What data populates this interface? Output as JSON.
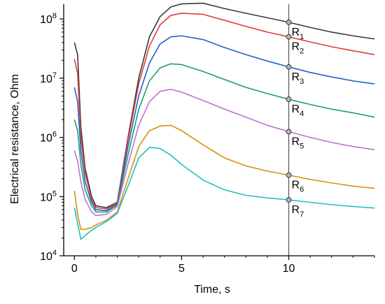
{
  "chart_data": {
    "type": "line",
    "title": "",
    "xlabel": "Time, s",
    "ylabel": "Electrical resistance, Ohm",
    "xlim": [
      -0.5,
      14
    ],
    "ylim_log10": [
      4,
      8.25
    ],
    "y_scale": "log",
    "x_ticks": [
      0,
      5,
      10
    ],
    "x_tick_labels": [
      "0",
      "5",
      "10"
    ],
    "y_ticks_log10": [
      4,
      5,
      6,
      7,
      8
    ],
    "y_tick_labels": [
      {
        "base": "10",
        "exp": "4"
      },
      {
        "base": "10",
        "exp": "5"
      },
      {
        "base": "10",
        "exp": "6"
      },
      {
        "base": "10",
        "exp": "7"
      },
      {
        "base": "10",
        "exp": "8"
      }
    ],
    "grid": false,
    "legend": "none",
    "reference_line_x": 10,
    "series": [
      {
        "label_base": "R",
        "label_sub": "1",
        "color": "#3a3a3a",
        "points": [
          [
            0,
            40000000
          ],
          [
            0.15,
            25000000
          ],
          [
            0.3,
            1500000
          ],
          [
            0.5,
            300000
          ],
          [
            0.8,
            100000
          ],
          [
            1.0,
            70000
          ],
          [
            1.5,
            65000
          ],
          [
            2.0,
            80000
          ],
          [
            2.5,
            1000000
          ],
          [
            3.0,
            10000000
          ],
          [
            3.5,
            50000000
          ],
          [
            4.0,
            110000000
          ],
          [
            4.5,
            160000000
          ],
          [
            5.0,
            180000000
          ],
          [
            6.0,
            185000000
          ],
          [
            7.0,
            150000000
          ],
          [
            8.0,
            125000000
          ],
          [
            9.0,
            105000000
          ],
          [
            10.0,
            88000000
          ],
          [
            11.0,
            72000000
          ],
          [
            12.0,
            60000000
          ],
          [
            13.0,
            52000000
          ],
          [
            14.0,
            46000000
          ]
        ]
      },
      {
        "label_base": "R",
        "label_sub": "2",
        "color": "#e03c3c",
        "points": [
          [
            0,
            21000000
          ],
          [
            0.15,
            12000000
          ],
          [
            0.3,
            1000000
          ],
          [
            0.5,
            250000
          ],
          [
            0.8,
            90000
          ],
          [
            1.0,
            65000
          ],
          [
            1.5,
            62000
          ],
          [
            2.0,
            78000
          ],
          [
            2.5,
            900000
          ],
          [
            3.0,
            8000000
          ],
          [
            3.5,
            35000000
          ],
          [
            4.0,
            80000000
          ],
          [
            4.5,
            115000000
          ],
          [
            5.0,
            125000000
          ],
          [
            6.0,
            120000000
          ],
          [
            7.0,
            95000000
          ],
          [
            8.0,
            75000000
          ],
          [
            9.0,
            60000000
          ],
          [
            10.0,
            50000000
          ],
          [
            11.0,
            41000000
          ],
          [
            12.0,
            34000000
          ],
          [
            13.0,
            29000000
          ],
          [
            14.0,
            25000000
          ]
        ]
      },
      {
        "label_base": "R",
        "label_sub": "3",
        "color": "#1f64c8",
        "points": [
          [
            0,
            7000000
          ],
          [
            0.15,
            4000000
          ],
          [
            0.3,
            600000
          ],
          [
            0.5,
            180000
          ],
          [
            0.8,
            80000
          ],
          [
            1.0,
            60000
          ],
          [
            1.5,
            58000
          ],
          [
            2.0,
            75000
          ],
          [
            2.5,
            700000
          ],
          [
            3.0,
            5000000
          ],
          [
            3.5,
            18000000
          ],
          [
            4.0,
            38000000
          ],
          [
            4.5,
            50000000
          ],
          [
            5.0,
            52000000
          ],
          [
            6.0,
            45000000
          ],
          [
            7.0,
            33000000
          ],
          [
            8.0,
            25000000
          ],
          [
            9.0,
            19500000
          ],
          [
            10.0,
            15500000
          ],
          [
            11.0,
            12500000
          ],
          [
            12.0,
            10500000
          ],
          [
            13.0,
            9000000
          ],
          [
            14.0,
            8000000
          ]
        ]
      },
      {
        "label_base": "R",
        "label_sub": "4",
        "color": "#1e9e6e",
        "points": [
          [
            0,
            2000000
          ],
          [
            0.15,
            1300000
          ],
          [
            0.3,
            350000
          ],
          [
            0.5,
            130000
          ],
          [
            0.8,
            70000
          ],
          [
            1.0,
            55000
          ],
          [
            1.5,
            55000
          ],
          [
            2.0,
            72000
          ],
          [
            2.5,
            500000
          ],
          [
            3.0,
            3000000
          ],
          [
            3.5,
            9000000
          ],
          [
            4.0,
            15000000
          ],
          [
            4.5,
            17500000
          ],
          [
            5.0,
            17000000
          ],
          [
            6.0,
            13000000
          ],
          [
            7.0,
            9500000
          ],
          [
            8.0,
            7000000
          ],
          [
            9.0,
            5500000
          ],
          [
            10.0,
            4400000
          ],
          [
            11.0,
            3600000
          ],
          [
            12.0,
            3000000
          ],
          [
            13.0,
            2600000
          ],
          [
            14.0,
            2200000
          ]
        ]
      },
      {
        "label_base": "R",
        "label_sub": "5",
        "color": "#c070d0",
        "points": [
          [
            0,
            600000
          ],
          [
            0.15,
            400000
          ],
          [
            0.3,
            180000
          ],
          [
            0.5,
            90000
          ],
          [
            0.8,
            55000
          ],
          [
            1.0,
            48000
          ],
          [
            1.5,
            50000
          ],
          [
            2.0,
            68000
          ],
          [
            2.5,
            350000
          ],
          [
            3.0,
            1600000
          ],
          [
            3.5,
            4000000
          ],
          [
            4.0,
            6000000
          ],
          [
            4.5,
            6500000
          ],
          [
            5.0,
            5800000
          ],
          [
            6.0,
            4200000
          ],
          [
            7.0,
            3000000
          ],
          [
            8.0,
            2200000
          ],
          [
            9.0,
            1600000
          ],
          [
            10.0,
            1250000
          ],
          [
            11.0,
            1000000
          ],
          [
            12.0,
            820000
          ],
          [
            13.0,
            700000
          ],
          [
            14.0,
            620000
          ]
        ]
      },
      {
        "label_base": "R",
        "label_sub": "6",
        "color": "#d4920a",
        "points": [
          [
            0,
            125000
          ],
          [
            0.15,
            50000
          ],
          [
            0.3,
            28000
          ],
          [
            0.5,
            28000
          ],
          [
            0.8,
            30000
          ],
          [
            1.0,
            33000
          ],
          [
            1.5,
            40000
          ],
          [
            2.0,
            55000
          ],
          [
            2.5,
            200000
          ],
          [
            3.0,
            700000
          ],
          [
            3.5,
            1300000
          ],
          [
            4.0,
            1550000
          ],
          [
            4.5,
            1600000
          ],
          [
            5.0,
            1300000
          ],
          [
            6.0,
            750000
          ],
          [
            7.0,
            450000
          ],
          [
            8.0,
            330000
          ],
          [
            9.0,
            270000
          ],
          [
            10.0,
            230000
          ],
          [
            11.0,
            195000
          ],
          [
            12.0,
            170000
          ],
          [
            13.0,
            150000
          ],
          [
            14.0,
            138000
          ]
        ]
      },
      {
        "label_base": "R",
        "label_sub": "7",
        "color": "#20c0c0",
        "points": [
          [
            0,
            65000
          ],
          [
            0.15,
            35000
          ],
          [
            0.3,
            19000
          ],
          [
            0.5,
            22000
          ],
          [
            0.8,
            27000
          ],
          [
            1.0,
            30000
          ],
          [
            1.5,
            38000
          ],
          [
            2.0,
            52000
          ],
          [
            2.5,
            150000
          ],
          [
            3.0,
            450000
          ],
          [
            3.5,
            680000
          ],
          [
            4.0,
            650000
          ],
          [
            4.5,
            500000
          ],
          [
            5.0,
            350000
          ],
          [
            6.0,
            190000
          ],
          [
            7.0,
            130000
          ],
          [
            8.0,
            105000
          ],
          [
            9.0,
            95000
          ],
          [
            10.0,
            88000
          ],
          [
            11.0,
            80000
          ],
          [
            12.0,
            73000
          ],
          [
            13.0,
            68000
          ],
          [
            14.0,
            64000
          ]
        ]
      }
    ]
  }
}
